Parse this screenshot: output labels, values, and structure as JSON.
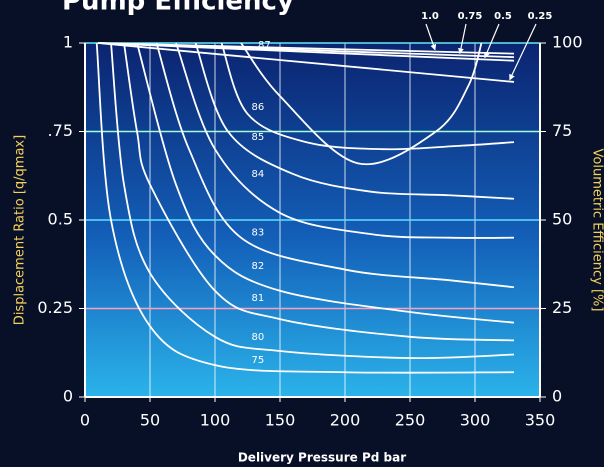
{
  "chart_data": {
    "type": "line",
    "title": "Pump Efficiency",
    "xlabel": "Delivery Pressure Pd bar",
    "ylabel": "Displacement Ratio [q/qmax]",
    "y2label": "Volumetric Efficiency [%]",
    "xlim": [
      0,
      350
    ],
    "xticks": [
      0,
      50,
      100,
      150,
      200,
      250,
      300,
      350
    ],
    "ylim": [
      0,
      1
    ],
    "yticks": [
      0,
      0.25,
      0.5,
      {
        "value": 0.75,
        "label": ".75"
      },
      1
    ],
    "y2lim": [
      0,
      100
    ],
    "y2ticks": [
      0,
      25,
      50,
      75,
      100
    ],
    "grid": true,
    "grid_colors": [
      "#ffffff",
      "#ff9fc0",
      "#5fe0ff",
      "#9fffe0",
      "#5fe8ff"
    ],
    "series": [
      {
        "name": "75",
        "color": "#ffffff",
        "x": [
          9,
          20,
          50,
          100,
          200,
          330
        ],
        "values": [
          1,
          0.5,
          0.2,
          0.09,
          0.07,
          0.07
        ]
      },
      {
        "name": "80",
        "color": "#ffffff",
        "x": [
          20,
          30,
          50,
          100,
          150,
          250,
          330
        ],
        "values": [
          1,
          0.6,
          0.35,
          0.17,
          0.13,
          0.11,
          0.12
        ]
      },
      {
        "name": "81",
        "color": "#ffffff",
        "x": [
          30,
          40,
          50,
          100,
          150,
          250,
          330
        ],
        "values": [
          1,
          0.75,
          0.6,
          0.3,
          0.22,
          0.17,
          0.16
        ]
      },
      {
        "name": "82",
        "color": "#ffffff",
        "x": [
          40,
          70,
          100,
          150,
          250,
          330
        ],
        "values": [
          1,
          0.6,
          0.4,
          0.3,
          0.24,
          0.21
        ]
      },
      {
        "name": "83",
        "color": "#ffffff",
        "x": [
          55,
          80,
          120,
          200,
          280,
          330
        ],
        "values": [
          1,
          0.7,
          0.45,
          0.36,
          0.33,
          0.31
        ]
      },
      {
        "name": "84",
        "color": "#ffffff",
        "x": [
          70,
          100,
          150,
          220,
          280,
          330
        ],
        "values": [
          1,
          0.7,
          0.52,
          0.46,
          0.45,
          0.45
        ]
      },
      {
        "name": "85",
        "color": "#ffffff",
        "x": [
          85,
          110,
          160,
          220,
          280,
          330
        ],
        "values": [
          1,
          0.75,
          0.63,
          0.58,
          0.57,
          0.56
        ]
      },
      {
        "name": "86",
        "color": "#ffffff",
        "x": [
          105,
          125,
          170,
          230,
          290,
          330
        ],
        "values": [
          1,
          0.8,
          0.72,
          0.7,
          0.71,
          0.72
        ]
      },
      {
        "name": "87",
        "color": "#ffffff",
        "x": [
          120,
          150,
          210,
          270,
          295,
          305
        ],
        "values": [
          1,
          0.85,
          0.66,
          0.75,
          0.88,
          1
        ]
      },
      {
        "name": "1.0",
        "color": "#ffffff",
        "axis": "y2",
        "x": [
          10,
          330
        ],
        "values": [
          100,
          97
        ]
      },
      {
        "name": "0.75",
        "color": "#ffffff",
        "axis": "y2",
        "x": [
          10,
          330
        ],
        "values": [
          100,
          96
        ]
      },
      {
        "name": "0.5",
        "color": "#ffffff",
        "axis": "y2",
        "x": [
          10,
          330
        ],
        "values": [
          100,
          95
        ]
      },
      {
        "name": "0.25",
        "color": "#ffffff",
        "axis": "y2",
        "x": [
          10,
          330
        ],
        "values": [
          100,
          89
        ]
      }
    ]
  }
}
